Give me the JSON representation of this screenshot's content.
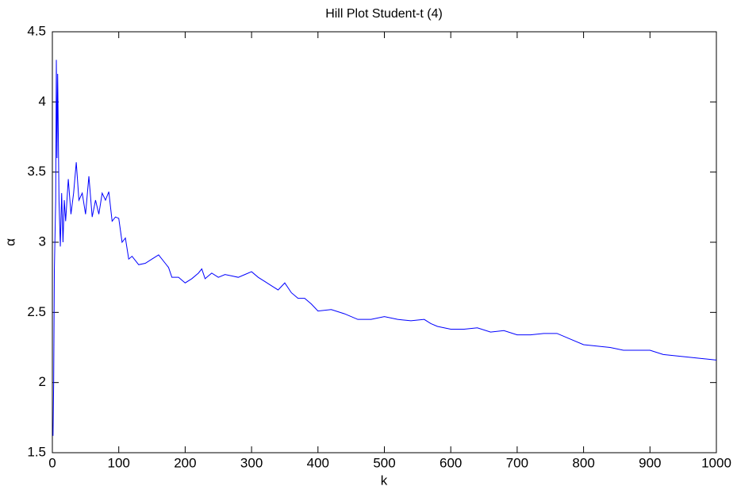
{
  "chart_data": {
    "type": "line",
    "title": "Hill Plot Student-t (4)",
    "x_label": "k",
    "y_label": "α",
    "x": [
      1,
      2,
      3,
      5,
      6,
      7,
      8,
      10,
      12,
      14,
      16,
      18,
      20,
      24,
      28,
      32,
      36,
      40,
      45,
      50,
      55,
      60,
      65,
      70,
      75,
      80,
      85,
      90,
      95,
      100,
      105,
      110,
      115,
      120,
      130,
      140,
      150,
      160,
      170,
      175,
      180,
      190,
      200,
      210,
      220,
      225,
      230,
      240,
      250,
      260,
      270,
      280,
      290,
      300,
      310,
      320,
      330,
      340,
      350,
      360,
      370,
      380,
      390,
      400,
      420,
      440,
      460,
      480,
      500,
      520,
      540,
      560,
      570,
      580,
      600,
      620,
      640,
      660,
      680,
      700,
      720,
      740,
      760,
      780,
      800,
      820,
      840,
      860,
      880,
      900,
      920,
      940,
      960,
      980,
      1000
    ],
    "values": [
      1.62,
      2.0,
      2.8,
      3.3,
      4.3,
      3.6,
      4.2,
      3.3,
      2.97,
      3.35,
      3.0,
      3.3,
      3.15,
      3.45,
      3.2,
      3.35,
      3.57,
      3.3,
      3.35,
      3.2,
      3.47,
      3.18,
      3.3,
      3.2,
      3.35,
      3.3,
      3.36,
      3.15,
      3.18,
      3.17,
      3.0,
      3.03,
      2.88,
      2.9,
      2.84,
      2.85,
      2.88,
      2.91,
      2.85,
      2.82,
      2.75,
      2.75,
      2.71,
      2.74,
      2.78,
      2.81,
      2.74,
      2.78,
      2.75,
      2.77,
      2.76,
      2.75,
      2.77,
      2.79,
      2.75,
      2.72,
      2.69,
      2.66,
      2.71,
      2.64,
      2.6,
      2.6,
      2.56,
      2.51,
      2.52,
      2.49,
      2.45,
      2.45,
      2.47,
      2.45,
      2.44,
      2.45,
      2.42,
      2.4,
      2.38,
      2.38,
      2.39,
      2.36,
      2.37,
      2.34,
      2.34,
      2.35,
      2.35,
      2.31,
      2.27,
      2.26,
      2.25,
      2.23,
      2.23,
      2.23,
      2.2,
      2.19,
      2.18,
      2.17,
      2.16
    ],
    "color": "#0000ff",
    "xlim": [
      0,
      1000
    ],
    "xticks": [
      0,
      100,
      200,
      300,
      400,
      500,
      600,
      700,
      800,
      900,
      1000
    ],
    "ylim": [
      1.5,
      4.5
    ],
    "yticks": [
      1.5,
      2,
      2.5,
      3,
      3.5,
      4,
      4.5
    ],
    "grid": false
  }
}
